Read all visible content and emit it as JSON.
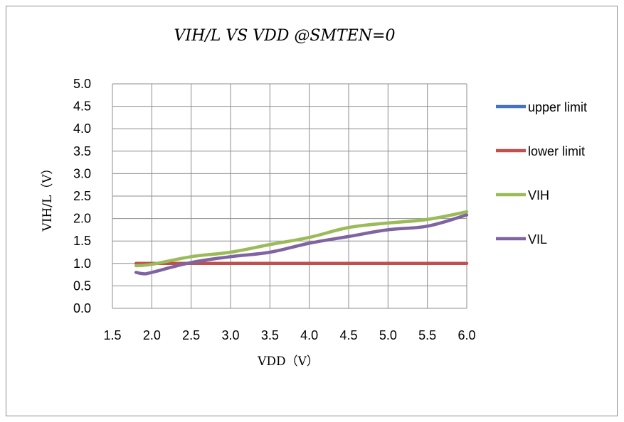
{
  "chart_data": {
    "type": "line",
    "title": "VIH/L VS VDD @SMTEN=0",
    "xlabel": "VDD（V）",
    "ylabel": "VIH/L（V）",
    "xlim": [
      1.5,
      6.0
    ],
    "ylim": [
      0.0,
      5.0
    ],
    "xticks": [
      "1.5",
      "2.0",
      "2.5",
      "3.0",
      "3.5",
      "4.0",
      "4.5",
      "5.0",
      "5.5",
      "6.0"
    ],
    "yticks": [
      "0.0",
      "0.5",
      "1.0",
      "1.5",
      "2.0",
      "2.5",
      "3.0",
      "3.5",
      "4.0",
      "4.5",
      "5.0"
    ],
    "grid": true,
    "legend_position": "right",
    "series": [
      {
        "name": "upper limit",
        "color": "#4472C4",
        "x": [],
        "y": []
      },
      {
        "name": "lower limit",
        "color": "#C0504D",
        "x": [
          1.8,
          2.0,
          2.5,
          3.0,
          3.5,
          4.0,
          4.5,
          5.0,
          5.5,
          6.0
        ],
        "y": [
          1.0,
          1.0,
          1.0,
          1.0,
          1.0,
          1.0,
          1.0,
          1.0,
          1.0,
          1.0
        ]
      },
      {
        "name": "VIH",
        "color": "#9BBB59",
        "x": [
          1.8,
          2.0,
          2.5,
          3.0,
          3.5,
          4.0,
          4.5,
          5.0,
          5.5,
          6.0
        ],
        "y": [
          0.95,
          0.98,
          1.15,
          1.25,
          1.42,
          1.58,
          1.8,
          1.9,
          1.98,
          2.15
        ]
      },
      {
        "name": "VIL",
        "color": "#8064A2",
        "x": [
          1.8,
          1.9,
          2.0,
          2.5,
          3.0,
          3.5,
          4.0,
          4.5,
          5.0,
          5.5,
          6.0
        ],
        "y": [
          0.8,
          0.77,
          0.8,
          1.02,
          1.15,
          1.25,
          1.45,
          1.6,
          1.75,
          1.83,
          2.08
        ]
      }
    ]
  }
}
